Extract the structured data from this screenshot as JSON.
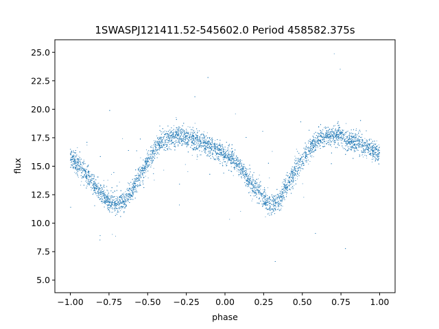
{
  "chart_data": {
    "type": "scatter",
    "title": "1SWASPJ121411.52-545602.0 Period 458582.375s",
    "xlabel": "phase",
    "ylabel": "flux",
    "xlim": [
      -1.1,
      1.1
    ],
    "ylim": [
      3.9,
      26.1
    ],
    "x_ticks": [
      -1.0,
      -0.75,
      -0.5,
      -0.25,
      0.0,
      0.25,
      0.5,
      0.75,
      1.0
    ],
    "x_tick_labels": [
      "−1.00",
      "−0.75",
      "−0.50",
      "−0.25",
      "0.00",
      "0.25",
      "0.50",
      "0.75",
      "1.00"
    ],
    "y_ticks": [
      5.0,
      7.5,
      10.0,
      12.5,
      15.0,
      17.5,
      20.0,
      22.5,
      25.0
    ],
    "y_tick_labels": [
      "5.0",
      "7.5",
      "10.0",
      "12.5",
      "15.0",
      "17.5",
      "20.0",
      "22.5",
      "25.0"
    ],
    "grid": false,
    "point_color": "#1f77b4",
    "series": [
      {
        "phase_profile": {
          "x": [
            -1.0,
            -0.95,
            -0.9,
            -0.85,
            -0.8,
            -0.75,
            -0.7,
            -0.65,
            -0.6,
            -0.55,
            -0.5,
            -0.45,
            -0.4,
            -0.35,
            -0.3,
            -0.25,
            -0.2,
            -0.15,
            -0.1,
            -0.05,
            0.0,
            0.05,
            0.1,
            0.15,
            0.2,
            0.25,
            0.3,
            0.35,
            0.4,
            0.45,
            0.5,
            0.55,
            0.6,
            0.65,
            0.7,
            0.75,
            0.8,
            0.85,
            0.9,
            0.95,
            1.0
          ],
          "y": [
            15.8,
            15.1,
            14.3,
            13.4,
            12.6,
            12.0,
            11.6,
            12.0,
            13.0,
            14.2,
            15.4,
            16.5,
            17.2,
            17.6,
            17.7,
            17.6,
            17.3,
            17.0,
            16.7,
            16.4,
            16.1,
            15.6,
            14.8,
            13.9,
            13.0,
            12.2,
            11.6,
            12.0,
            13.2,
            14.5,
            15.6,
            16.6,
            17.3,
            17.6,
            17.7,
            17.6,
            17.3,
            17.0,
            16.7,
            16.4,
            16.1
          ]
        },
        "scatter_sigma": 0.45,
        "n_points": 9000
      }
    ]
  }
}
